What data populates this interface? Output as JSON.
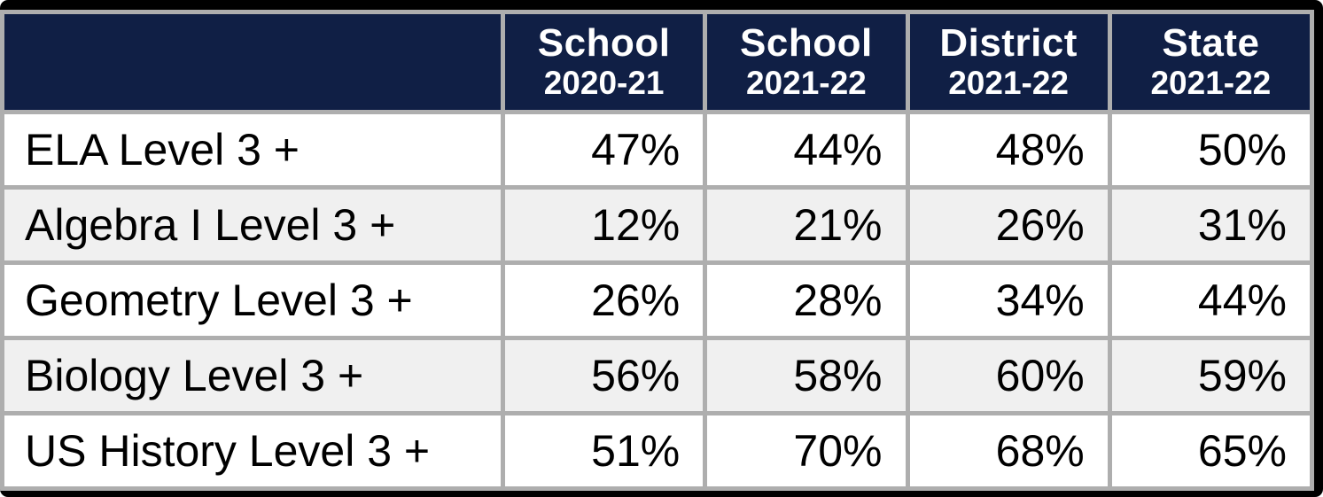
{
  "chart_data": {
    "type": "table",
    "columns": [
      {
        "label": "",
        "sublabel": ""
      },
      {
        "label": "School",
        "sublabel": "2020-21"
      },
      {
        "label": "School",
        "sublabel": "2021-22"
      },
      {
        "label": "District",
        "sublabel": "2021-22"
      },
      {
        "label": "State",
        "sublabel": "2021-22"
      }
    ],
    "rows": [
      {
        "label": "ELA Level 3 +",
        "values": [
          "47%",
          "44%",
          "48%",
          "50%"
        ]
      },
      {
        "label": "Algebra I Level 3 +",
        "values": [
          "12%",
          "21%",
          "26%",
          "31%"
        ]
      },
      {
        "label": "Geometry Level 3 +",
        "values": [
          "26%",
          "28%",
          "34%",
          "44%"
        ]
      },
      {
        "label": "Biology Level 3 +",
        "values": [
          "56%",
          "58%",
          "60%",
          "59%"
        ]
      },
      {
        "label": "US History Level 3 +",
        "values": [
          "51%",
          "70%",
          "68%",
          "65%"
        ]
      }
    ]
  },
  "colors": {
    "header_background": "#101F45",
    "header_text": "#FFFFFF",
    "grid_border": "#AEAEAE",
    "row_odd_background": "#FFFFFF",
    "row_even_background": "#F0F0F0",
    "body_text": "#000000",
    "frame_background": "#000000"
  }
}
